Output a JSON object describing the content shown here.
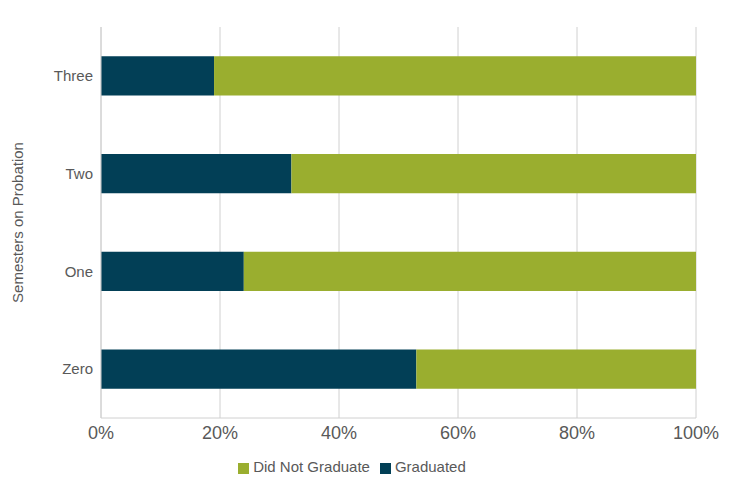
{
  "chart_data": {
    "type": "bar",
    "orientation": "horizontal",
    "stacked": true,
    "y_label": "Semesters on Probation",
    "categories": [
      "Zero",
      "One",
      "Two",
      "Three"
    ],
    "series": [
      {
        "name": "Graduated",
        "color": "#023f56",
        "values": [
          53,
          24,
          32,
          19
        ]
      },
      {
        "name": "Did Not Graduate",
        "color": "#9aae2f",
        "values": [
          47,
          76,
          68,
          81
        ]
      }
    ],
    "xlim": [
      0,
      100
    ],
    "xticks": [
      {
        "value": 0,
        "label": "0%"
      },
      {
        "value": 20,
        "label": "20%"
      },
      {
        "value": 40,
        "label": "40%"
      },
      {
        "value": 60,
        "label": "60%"
      },
      {
        "value": 80,
        "label": "80%"
      },
      {
        "value": 100,
        "label": "100%"
      }
    ],
    "grid": true,
    "legend": "bottom"
  }
}
